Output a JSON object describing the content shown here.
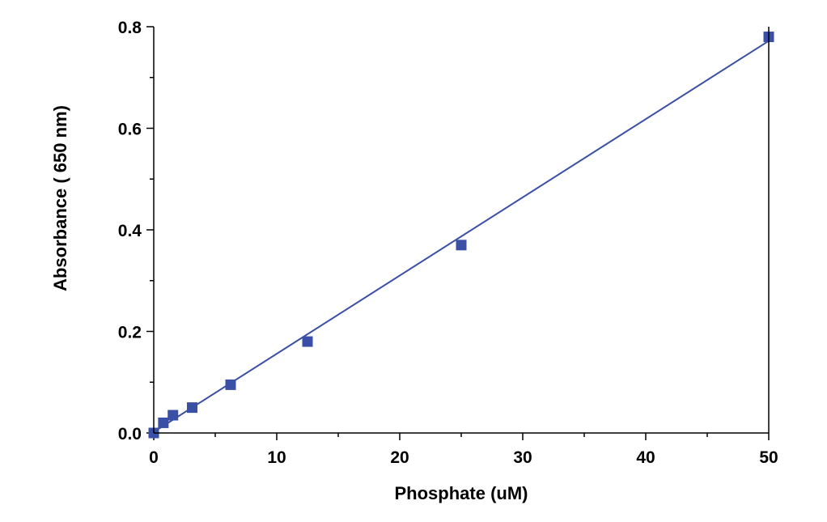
{
  "chart_data": {
    "type": "scatter",
    "xlabel": "Phosphate (uM)",
    "ylabel": "Absorbance ( 650 nm)",
    "xlim": [
      0,
      50
    ],
    "ylim": [
      0,
      0.8
    ],
    "x_ticks": [
      "0",
      "10",
      "20",
      "30",
      "40",
      "50"
    ],
    "y_ticks": [
      "0.0",
      "0.2",
      "0.4",
      "0.6",
      "0.8"
    ],
    "grid": false,
    "colors": {
      "series": "#3a4fa6",
      "axis": "#000000"
    },
    "series": [
      {
        "marker": "square",
        "points": [
          {
            "x": 0,
            "y": 0.0
          },
          {
            "x": 0.78,
            "y": 0.02
          },
          {
            "x": 1.56,
            "y": 0.035
          },
          {
            "x": 3.125,
            "y": 0.05
          },
          {
            "x": 6.25,
            "y": 0.095
          },
          {
            "x": 12.5,
            "y": 0.18
          },
          {
            "x": 25,
            "y": 0.37
          },
          {
            "x": 50,
            "y": 0.78
          }
        ]
      }
    ],
    "fit_line": {
      "type": "linear",
      "x": [
        0,
        50
      ],
      "y": [
        0.002,
        0.772
      ]
    }
  }
}
